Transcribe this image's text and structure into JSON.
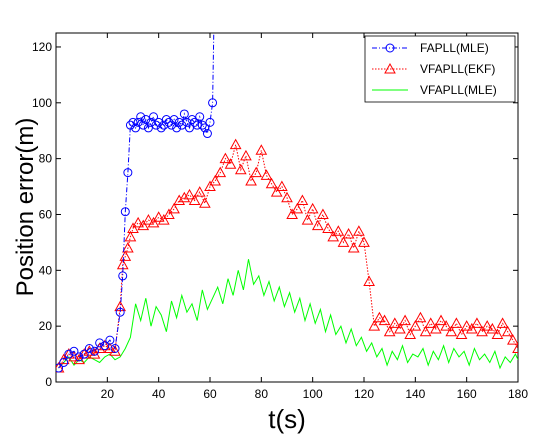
{
  "chart_data": {
    "type": "line",
    "xlabel": "t(s)",
    "ylabel": "Position error(m)",
    "xlim": [
      0,
      180
    ],
    "ylim": [
      0,
      125
    ],
    "xticks": [
      20,
      40,
      60,
      80,
      100,
      120,
      140,
      160,
      180
    ],
    "yticks": [
      0,
      20,
      40,
      60,
      80,
      100,
      120
    ],
    "xtick_labels": [
      "20",
      "40",
      "60",
      "80",
      "100",
      "120",
      "140",
      "160",
      "180"
    ],
    "ytick_labels": [
      "0",
      "20",
      "40",
      "60",
      "80",
      "100",
      "120"
    ],
    "grid": false,
    "legend_position": "top-right",
    "series": [
      {
        "name": "FAPLL(MLE)",
        "color": "#0000ff",
        "marker": "circle",
        "line": "dashdot",
        "x": [
          1,
          3,
          5,
          7,
          9,
          11,
          13,
          15,
          17,
          19,
          21,
          23,
          25,
          26,
          27,
          28,
          29,
          30,
          31,
          32,
          33,
          34,
          35,
          36,
          37,
          38,
          39,
          40,
          41,
          42,
          43,
          44,
          45,
          46,
          47,
          48,
          49,
          50,
          51,
          52,
          53,
          54,
          55,
          56,
          57,
          58,
          59,
          60,
          61,
          61.5
        ],
        "y": [
          5,
          7,
          10,
          11,
          9,
          10,
          12,
          11,
          14,
          13,
          15,
          12,
          25,
          38,
          61,
          75,
          92,
          93,
          91,
          93,
          95,
          92,
          94,
          91,
          93,
          95,
          92,
          93,
          91,
          92,
          94,
          93,
          92,
          94,
          91,
          93,
          92,
          96,
          93,
          91,
          94,
          93,
          92,
          95,
          92,
          91,
          89,
          93,
          100,
          126
        ]
      },
      {
        "name": "VFAPLL(EKF)",
        "color": "#ff0000",
        "marker": "triangle",
        "line": "dotted",
        "x": [
          1,
          3,
          5,
          7,
          9,
          11,
          13,
          15,
          17,
          19,
          21,
          23,
          25,
          26,
          27,
          28,
          29,
          30,
          32,
          34,
          36,
          38,
          40,
          42,
          44,
          46,
          48,
          50,
          52,
          54,
          56,
          58,
          60,
          62,
          64,
          66,
          68,
          70,
          72,
          74,
          76,
          78,
          80,
          82,
          84,
          86,
          88,
          90,
          92,
          94,
          96,
          98,
          100,
          102,
          104,
          106,
          108,
          110,
          112,
          114,
          116,
          118,
          120,
          122,
          124,
          126,
          128,
          130,
          132,
          134,
          136,
          138,
          140,
          142,
          144,
          146,
          148,
          150,
          152,
          154,
          156,
          158,
          160,
          162,
          164,
          166,
          168,
          170,
          172,
          174,
          176,
          178,
          180
        ],
        "y": [
          5,
          8,
          10,
          9,
          8,
          10,
          11,
          10,
          12,
          13,
          12,
          11,
          27,
          42,
          45,
          48,
          52,
          55,
          57,
          56,
          58,
          57,
          59,
          58,
          60,
          62,
          65,
          66,
          67,
          65,
          68,
          64,
          70,
          72,
          75,
          80,
          78,
          85,
          76,
          81,
          72,
          75,
          83,
          74,
          71,
          68,
          70,
          66,
          60,
          62,
          65,
          58,
          62,
          56,
          60,
          55,
          52,
          54,
          50,
          53,
          48,
          54,
          50,
          36,
          20,
          23,
          22,
          18,
          21,
          19,
          22,
          17,
          20,
          23,
          18,
          21,
          19,
          22,
          20,
          18,
          21,
          17,
          20,
          19,
          21,
          18,
          20,
          19,
          17,
          21,
          18,
          15,
          12
        ]
      },
      {
        "name": "VFAPLL(MLE)",
        "color": "#00ff00",
        "marker": "none",
        "line": "solid",
        "x": [
          1,
          3,
          5,
          7,
          9,
          11,
          13,
          15,
          17,
          19,
          21,
          23,
          25,
          27,
          29,
          31,
          33,
          35,
          37,
          39,
          41,
          43,
          45,
          47,
          49,
          51,
          53,
          55,
          57,
          59,
          61,
          63,
          65,
          67,
          69,
          71,
          73,
          75,
          77,
          79,
          81,
          83,
          85,
          87,
          89,
          91,
          93,
          95,
          97,
          99,
          101,
          103,
          105,
          107,
          109,
          111,
          113,
          115,
          117,
          119,
          121,
          123,
          125,
          127,
          129,
          131,
          133,
          135,
          137,
          139,
          141,
          143,
          145,
          147,
          149,
          151,
          153,
          155,
          157,
          159,
          161,
          163,
          165,
          167,
          169,
          171,
          173,
          175,
          177,
          179,
          180
        ],
        "y": [
          5,
          7,
          9,
          6,
          8,
          7,
          9,
          8,
          7,
          9,
          10,
          8,
          9,
          12,
          16,
          28,
          22,
          30,
          20,
          27,
          24,
          18,
          29,
          23,
          31,
          25,
          28,
          22,
          33,
          26,
          30,
          34,
          28,
          37,
          31,
          40,
          33,
          44,
          35,
          38,
          31,
          36,
          29,
          34,
          27,
          32,
          25,
          30,
          22,
          28,
          21,
          26,
          18,
          24,
          17,
          20,
          14,
          19,
          13,
          16,
          11,
          14,
          9,
          12,
          6,
          11,
          8,
          13,
          7,
          10,
          9,
          12,
          6,
          11,
          8,
          13,
          7,
          12,
          9,
          11,
          6,
          12,
          8,
          10,
          7,
          11,
          5,
          9,
          7,
          10,
          8
        ]
      }
    ]
  }
}
